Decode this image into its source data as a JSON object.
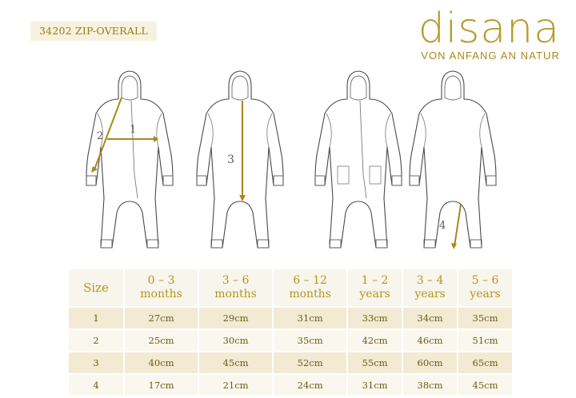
{
  "product": {
    "code_title": "34202 ZIP-OVERALL"
  },
  "brand": {
    "logo": "disana",
    "tagline": "VON ANFANG AN NATUR",
    "color": "#b89a2c"
  },
  "measures": {
    "m1": "1",
    "m2": "2",
    "m3": "3",
    "m4": "4"
  },
  "table": {
    "header_size": "Size",
    "columns": [
      {
        "range": "0 – 3",
        "unit": "months"
      },
      {
        "range": "3 – 6",
        "unit": "months"
      },
      {
        "range": "6 – 12",
        "unit": "months"
      },
      {
        "range": "1 – 2",
        "unit": "years"
      },
      {
        "range": "3 – 4",
        "unit": "years"
      },
      {
        "range": "5 – 6",
        "unit": "years"
      }
    ],
    "rows": [
      {
        "size": "1",
        "values": [
          "27cm",
          "29cm",
          "31cm",
          "33cm",
          "34cm",
          "35cm"
        ]
      },
      {
        "size": "2",
        "values": [
          "25cm",
          "30cm",
          "35cm",
          "42cm",
          "46cm",
          "51cm"
        ]
      },
      {
        "size": "3",
        "values": [
          "40cm",
          "45cm",
          "52cm",
          "55cm",
          "60cm",
          "65cm"
        ]
      },
      {
        "size": "4",
        "values": [
          "17cm",
          "21cm",
          "24cm",
          "31cm",
          "38cm",
          "45cm"
        ]
      }
    ]
  }
}
